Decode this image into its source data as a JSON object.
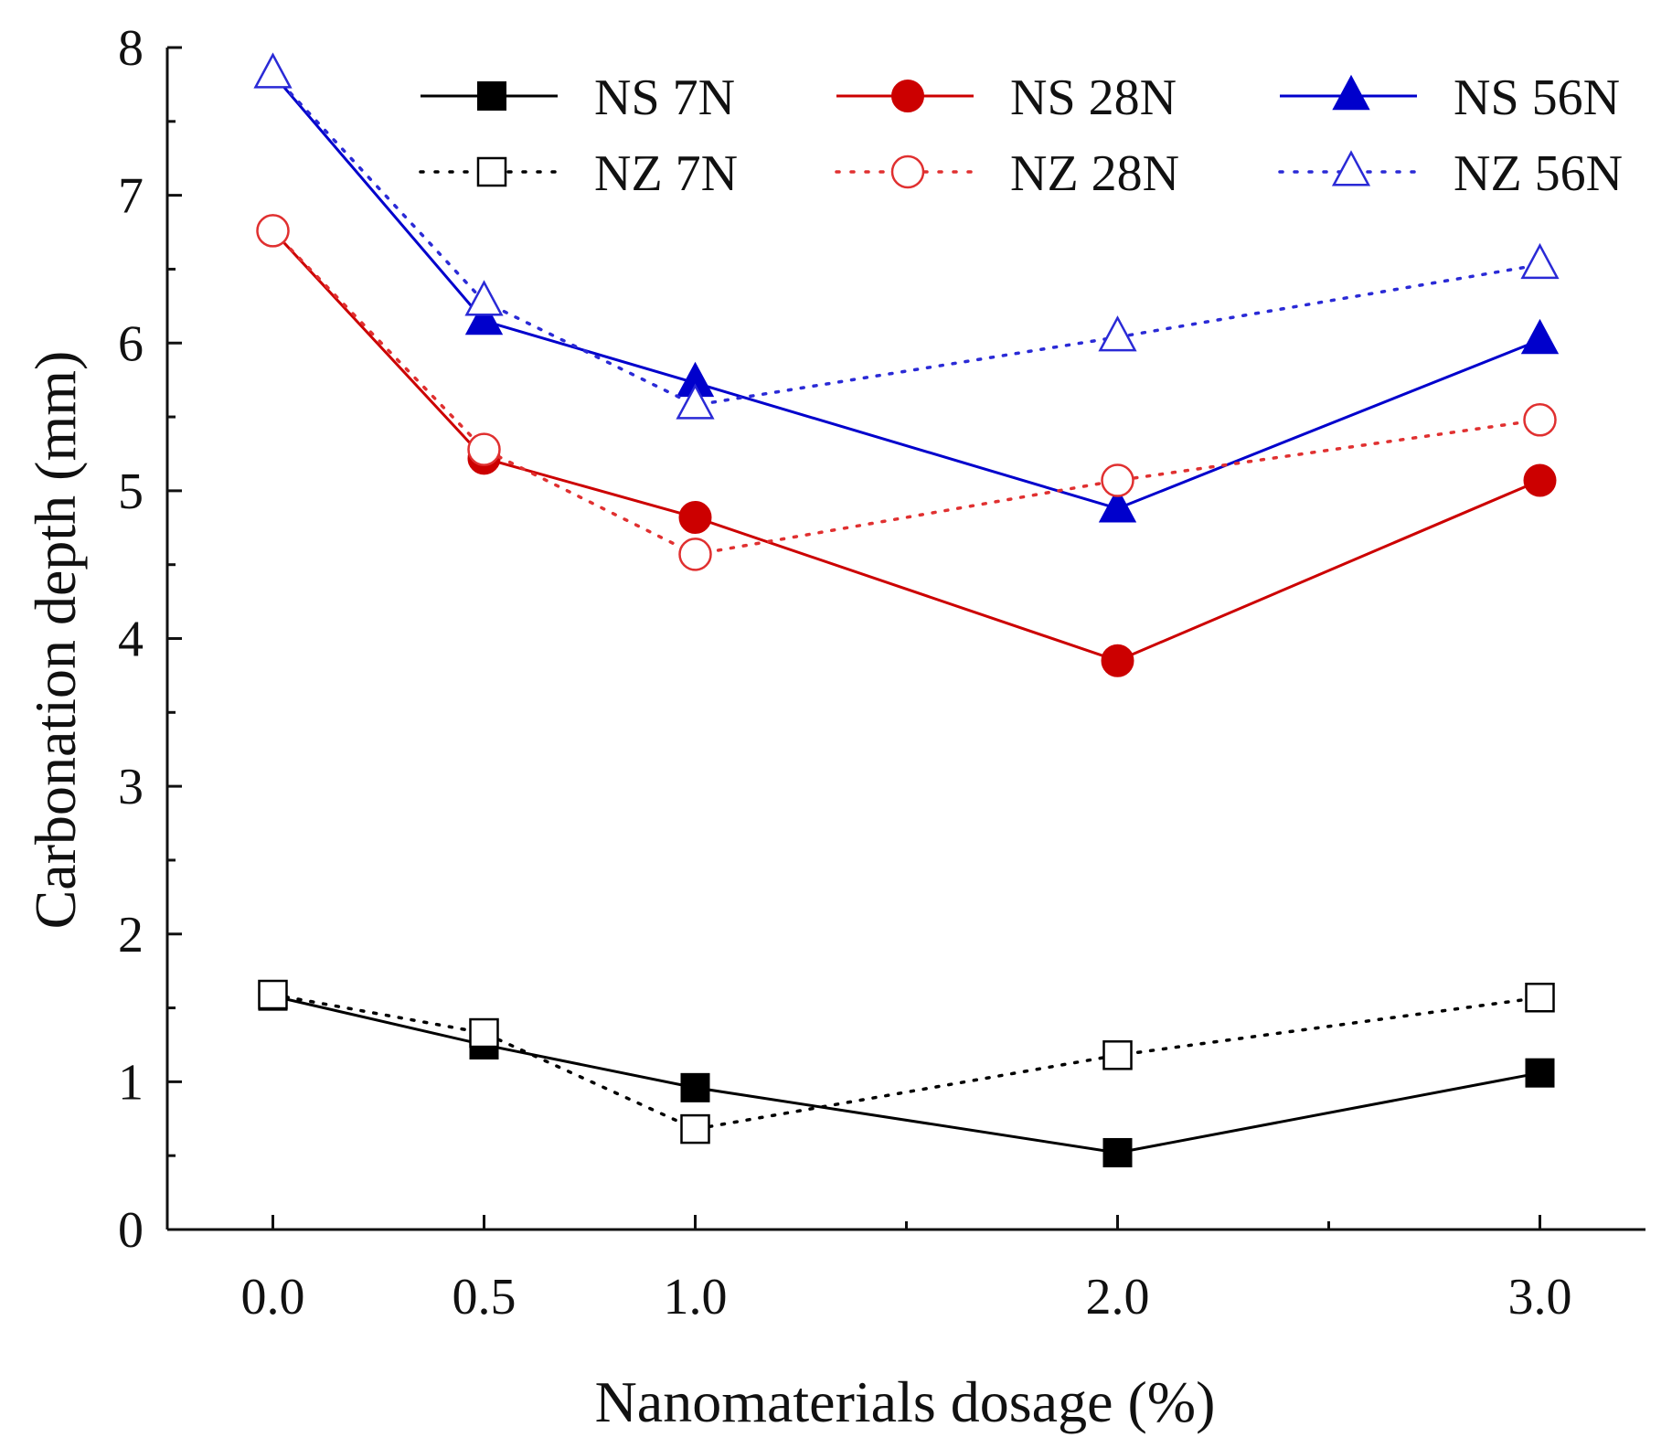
{
  "chart_data": {
    "type": "line",
    "xlabel": "Nanomaterials dosage (%)",
    "ylabel": "Carbonation depth (mm)",
    "x": [
      0.0,
      0.5,
      1.0,
      2.0,
      3.0
    ],
    "x_tick_labels": [
      "0.0",
      "0.5",
      "1.0",
      "2.0",
      "3.0"
    ],
    "xlim": [
      -0.25,
      3.25
    ],
    "ylim": [
      0,
      8
    ],
    "y_ticks": [
      0,
      1,
      2,
      3,
      4,
      5,
      6,
      7,
      8
    ],
    "y_tick_labels": [
      "0",
      "1",
      "2",
      "3",
      "4",
      "5",
      "6",
      "7",
      "8"
    ],
    "legend_position": "top-right",
    "series": [
      {
        "name": "NS 7N",
        "color": "#000000",
        "line": "solid",
        "marker": "square",
        "filled": true,
        "values": [
          1.58,
          1.25,
          0.96,
          0.52,
          1.06
        ]
      },
      {
        "name": "NZ 7N",
        "color": "#000000",
        "line": "dotted",
        "marker": "square",
        "filled": false,
        "values": [
          1.59,
          1.33,
          0.68,
          1.18,
          1.57
        ]
      },
      {
        "name": "NS 28N",
        "color": "#cc0000",
        "line": "solid",
        "marker": "circle",
        "filled": true,
        "values": [
          6.76,
          5.22,
          4.82,
          3.85,
          5.07
        ]
      },
      {
        "name": "NZ 28N",
        "color": "#e03030",
        "line": "dotted",
        "marker": "circle",
        "filled": false,
        "values": [
          6.76,
          5.28,
          4.57,
          5.07,
          5.48
        ]
      },
      {
        "name": "NS 56N",
        "color": "#0000cc",
        "line": "solid",
        "marker": "triangle",
        "filled": true,
        "values": [
          7.82,
          6.15,
          5.73,
          4.88,
          6.02
        ]
      },
      {
        "name": "NZ 56N",
        "color": "#2a2ad6",
        "line": "dotted",
        "marker": "triangle",
        "filled": false,
        "values": [
          7.82,
          6.28,
          5.58,
          6.04,
          6.53
        ]
      }
    ]
  }
}
